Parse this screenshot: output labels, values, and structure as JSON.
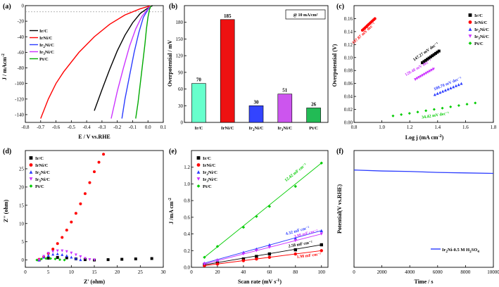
{
  "chart_data": [
    {
      "panel": "(a)",
      "type": "line",
      "xlabel": "E / V vs.RHE",
      "ylabel": "J / mAcm⁻²",
      "xlim": [
        -0.8,
        0.1
      ],
      "ylim": [
        -150,
        0
      ],
      "xticks": [
        -0.8,
        -0.7,
        -0.6,
        -0.5,
        -0.4,
        -0.3,
        -0.2,
        -0.1,
        0.0,
        0.1
      ],
      "yticks": [
        -140,
        -120,
        -100,
        -80,
        -60,
        -40,
        -20,
        0
      ],
      "legend": [
        "Ir/C",
        "IrNi/C",
        "Ir2Ni/C",
        "Ir3Ni/C",
        "Pt/C"
      ],
      "series": [
        {
          "name": "Ir/C",
          "color": "#000000",
          "x": [
            0.03,
            0.0,
            -0.05,
            -0.1,
            -0.15,
            -0.2,
            -0.25,
            -0.3,
            -0.35
          ],
          "y": [
            0,
            -3,
            -10,
            -22,
            -38,
            -58,
            -82,
            -108,
            -135
          ]
        },
        {
          "name": "IrNi/C",
          "color": "#ff0000",
          "x": [
            0.02,
            -0.05,
            -0.15,
            -0.25,
            -0.35,
            -0.45,
            -0.55,
            -0.6,
            -0.65,
            -0.7
          ],
          "y": [
            0,
            -4,
            -12,
            -24,
            -40,
            -60,
            -85,
            -100,
            -120,
            -145
          ]
        },
        {
          "name": "Ir2Ni/C",
          "color": "#2b3cff",
          "x": [
            0.02,
            0.0,
            -0.03,
            -0.06,
            -0.09,
            -0.12,
            -0.15,
            -0.17
          ],
          "y": [
            0,
            -5,
            -15,
            -35,
            -60,
            -90,
            -120,
            -145
          ]
        },
        {
          "name": "Ir3Ni/C",
          "color": "#cc33ff",
          "x": [
            0.02,
            0.0,
            -0.04,
            -0.08,
            -0.12,
            -0.16,
            -0.2,
            -0.24
          ],
          "y": [
            0,
            -4,
            -14,
            -30,
            -52,
            -80,
            -110,
            -145
          ]
        },
        {
          "name": "Pt/C",
          "color": "#00aa00",
          "x": [
            0.02,
            0.01,
            0.0,
            -0.01,
            -0.02,
            -0.035,
            -0.05,
            -0.065,
            -0.08
          ],
          "y": [
            0,
            -5,
            -15,
            -30,
            -50,
            -75,
            -100,
            -125,
            -145
          ]
        }
      ]
    },
    {
      "panel": "(b)",
      "type": "bar",
      "ylabel": "Overpotential / mV",
      "note": "@ 10 mA/cm²",
      "ylim": [
        0,
        210
      ],
      "yticks": [
        0,
        30,
        60,
        90,
        120,
        150,
        180
      ],
      "categories": [
        "Ir/C",
        "IrNi/C",
        "Ir2Ni/C",
        "Ir3Ni/C",
        "Pt/C"
      ],
      "values": [
        70,
        185,
        30,
        51,
        26
      ],
      "colors": [
        "#66ffcc",
        "#ee1111",
        "#3344ff",
        "#cc55ee",
        "#22bb55"
      ]
    },
    {
      "panel": "(c)",
      "type": "scatter",
      "xlabel": "Log j (mA cm⁻²)",
      "ylabel": "Overpotential (V)",
      "xlim": [
        0.8,
        1.8
      ],
      "ylim": [
        0,
        0.18
      ],
      "xticks": [
        0.8,
        1.0,
        1.2,
        1.4,
        1.6,
        1.8
      ],
      "yticks": [
        0.0,
        0.02,
        0.04,
        0.06,
        0.08,
        0.1,
        0.12,
        0.14,
        0.16
      ],
      "legend": [
        "Ir/C",
        "IrNi/C",
        "Ir2Ni/C",
        "Ir3Ni/C",
        "Pt/C"
      ],
      "series": [
        {
          "name": "Ir/C",
          "color": "#000000",
          "marker": "square",
          "x": [
            1.29,
            1.41
          ],
          "y": [
            0.092,
            0.11
          ],
          "slope": "147.27 mV dec⁻¹"
        },
        {
          "name": "IrNi/C",
          "color": "#ff0000",
          "marker": "circle",
          "x": [
            0.86,
            0.95
          ],
          "y": [
            0.142,
            0.16
          ],
          "slope": "197.07 mV dec⁻¹"
        },
        {
          "name": "Ir2Ni/C",
          "color": "#2b3cff",
          "marker": "triangle",
          "x": [
            1.38,
            1.57
          ],
          "y": [
            0.043,
            0.06
          ],
          "slope": "100.70 mV dec⁻¹"
        },
        {
          "name": "Ir3Ni/C",
          "color": "#cc33ff",
          "marker": "triangle-down",
          "x": [
            1.24,
            1.37
          ],
          "y": [
            0.066,
            0.082
          ],
          "slope": "120.48 mV dec⁻¹"
        },
        {
          "name": "Pt/C",
          "color": "#00cc00",
          "marker": "diamond",
          "x": [
            1.08,
            1.67
          ],
          "y": [
            0.01,
            0.03
          ],
          "slope": "34.42 mV dec⁻¹"
        }
      ]
    },
    {
      "panel": "(d)",
      "type": "scatter",
      "xlabel": "Z' (ohm)",
      "ylabel": "Z'' (ohm)",
      "xlim": [
        0,
        30
      ],
      "ylim": [
        -2,
        30
      ],
      "xticks": [
        0,
        5,
        10,
        15,
        20,
        25,
        30
      ],
      "yticks": [
        0,
        5,
        10,
        15,
        20,
        25
      ],
      "legend": [
        "Ir/C",
        "IrNi/C",
        "Ir2Ni/C",
        "Ir3Ni/C",
        "Pt/C"
      ],
      "series": [
        {
          "name": "Ir/C",
          "color": "#000000",
          "marker": "square",
          "x": [
            3,
            5,
            7,
            9,
            11,
            13,
            15,
            18,
            21,
            24,
            27.5
          ],
          "y": [
            0,
            0.5,
            0.7,
            0.6,
            0.3,
            0.1,
            0,
            0.1,
            0.2,
            0.3,
            0.4
          ]
        },
        {
          "name": "IrNi/C",
          "color": "#ff0000",
          "marker": "circle",
          "x": [
            3,
            4,
            5,
            6,
            7,
            8,
            9,
            10,
            11,
            12,
            13,
            14,
            15,
            16,
            17
          ],
          "y": [
            0.2,
            0.8,
            1.8,
            3,
            4.5,
            6.2,
            8.2,
            10.4,
            12.8,
            15.4,
            18.2,
            21.2,
            24.2,
            26.8,
            29
          ]
        },
        {
          "name": "Ir2Ni/C",
          "color": "#2b3cff",
          "marker": "triangle",
          "x": [
            3,
            4,
            5,
            6,
            7,
            8,
            9,
            10,
            11,
            12
          ],
          "y": [
            0,
            0.8,
            1.3,
            1.6,
            1.7,
            1.5,
            1.2,
            0.8,
            0.4,
            0.1
          ]
        },
        {
          "name": "Ir3Ni/C",
          "color": "#cc33ff",
          "marker": "triangle-down",
          "x": [
            3,
            4,
            5,
            6,
            7,
            8,
            9,
            10,
            11,
            12,
            13,
            14,
            15
          ],
          "y": [
            0,
            1,
            1.8,
            2.3,
            2.5,
            2.5,
            2.3,
            1.9,
            1.4,
            0.9,
            0.4,
            0.1,
            0
          ]
        },
        {
          "name": "Pt/C",
          "color": "#00cc00",
          "marker": "diamond",
          "x": [
            2.5,
            3.5,
            4.5,
            5.5,
            6.5,
            7.5,
            8.5
          ],
          "y": [
            0,
            0.3,
            0.4,
            0.4,
            0.3,
            0.1,
            0
          ]
        }
      ]
    },
    {
      "panel": "(e)",
      "type": "scatter",
      "xlabel": "Scan rate (mV s⁻¹)",
      "ylabel": "J / mA cm⁻²",
      "xlim": [
        0,
        105
      ],
      "ylim": [
        0,
        1.4
      ],
      "xticks": [
        0,
        20,
        40,
        60,
        80,
        100
      ],
      "yticks": [
        0.0,
        0.2,
        0.4,
        0.6,
        0.8,
        1.0,
        1.2
      ],
      "legend": [
        "Ir/C",
        "IrNi/C",
        "Ir2Ni/C",
        "Ir3Ni/C",
        "Pt/C"
      ],
      "series": [
        {
          "name": "Ir/C",
          "color": "#000000",
          "marker": "square",
          "x": [
            10,
            20,
            40,
            50,
            60,
            80,
            100
          ],
          "y": [
            0.03,
            0.05,
            0.1,
            0.13,
            0.16,
            0.21,
            0.27
          ],
          "slope": "2.58 mF cm⁻²"
        },
        {
          "name": "IrNi/C",
          "color": "#ff0000",
          "marker": "circle",
          "x": [
            10,
            20,
            40,
            50,
            60,
            80,
            100
          ],
          "y": [
            0.02,
            0.04,
            0.08,
            0.1,
            0.12,
            0.16,
            0.2
          ],
          "slope": "1.98 mF cm⁻²"
        },
        {
          "name": "Ir2Ni/C",
          "color": "#2b3cff",
          "marker": "triangle",
          "x": [
            10,
            20,
            40,
            50,
            60,
            80,
            100
          ],
          "y": [
            0.05,
            0.09,
            0.18,
            0.22,
            0.27,
            0.35,
            0.44
          ],
          "slope": "4.32 mF cm⁻²"
        },
        {
          "name": "Ir3Ni/C",
          "color": "#cc33ff",
          "marker": "triangle-down",
          "x": [
            10,
            20,
            40,
            50,
            60,
            80,
            100
          ],
          "y": [
            0.04,
            0.08,
            0.16,
            0.2,
            0.24,
            0.32,
            0.4
          ],
          "slope": "3.98 mF cm⁻²"
        },
        {
          "name": "Pt/C",
          "color": "#00cc00",
          "marker": "diamond",
          "x": [
            10,
            20,
            40,
            50,
            60,
            80,
            100
          ],
          "y": [
            0.12,
            0.25,
            0.48,
            0.61,
            0.73,
            0.97,
            1.25
          ],
          "slope": "12.42 mF cm⁻²"
        }
      ]
    },
    {
      "panel": "(f)",
      "type": "line",
      "xlabel": "Time / s",
      "ylabel": "Potential(V vs.RHE)",
      "xlim": [
        0,
        10000
      ],
      "ylim": [
        -2.0,
        0.4
      ],
      "xticks": [
        0,
        2000,
        4000,
        6000,
        8000,
        10000
      ],
      "legend": [
        "Ir2Ni-0.5 M H2SO4"
      ],
      "series": [
        {
          "name": "Ir2Ni-0.5 M H2SO4",
          "color": "#2b3cff",
          "x": [
            0,
            2000,
            4000,
            6000,
            8000,
            10000
          ],
          "y": [
            0.0,
            -0.02,
            -0.03,
            -0.05,
            -0.06,
            -0.07
          ]
        }
      ]
    }
  ],
  "labels": {
    "a": {
      "panel": "(a)",
      "xlabel": "E / V vs.RHE",
      "ylabel": "J / mAcm",
      "ylabel_sup": "-2"
    },
    "b": {
      "panel": "(b)",
      "ylabel": "Overpotential / mV",
      "note": "@ 10 mA/cm²"
    },
    "c": {
      "panel": "(c)",
      "xlabel": "Log j (mA cm",
      "xlabel_sup": "-2",
      "xlabel_end": ")",
      "ylabel": "Overpotential (V)"
    },
    "d": {
      "panel": "(d)",
      "xlabel": "Z' (ohm)",
      "ylabel": "Z'' (ohm)"
    },
    "e": {
      "panel": "(e)",
      "xlabel": "Scan rate (mV s",
      "xlabel_sup": "-1",
      "xlabel_end": ")",
      "ylabel": "J /mA cm",
      "ylabel_sup": "-2"
    },
    "f": {
      "panel": "(f)",
      "xlabel": "Time / s",
      "ylabel": "Potential(V vs.RHE)",
      "legend_main": "Ir",
      "legend_sub": "2",
      "legend_rest": "Ni-0.5 M H",
      "legend_sub2": "2",
      "legend_end": "SO",
      "legend_sub3": "4"
    }
  },
  "legend_text": {
    "IrC": "Ir/C",
    "IrNiC": "IrNi/C",
    "Ir2Ni_a": "Ir",
    "Ir2Ni_sub": "2",
    "Ir2Ni_b": "Ni/C",
    "Ir3Ni_a": "Ir",
    "Ir3Ni_sub": "3",
    "Ir3Ni_b": "Ni/C",
    "PtC": "Pt/C"
  }
}
